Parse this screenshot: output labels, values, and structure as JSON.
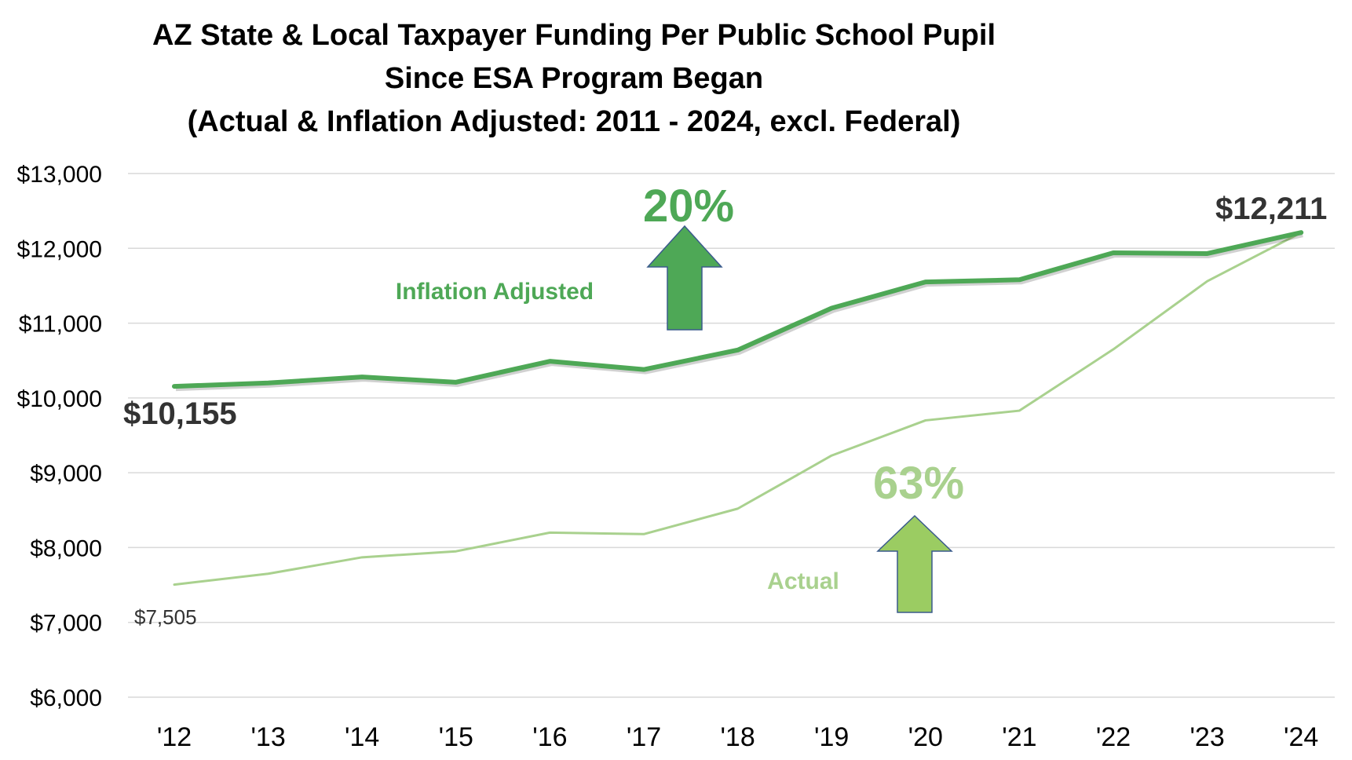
{
  "chart_data": {
    "type": "line",
    "title": [
      "AZ State & Local Taxpayer Funding Per Public School Pupil",
      "Since ESA Program Began",
      "(Actual & Inflation Adjusted: 2011 - 2024, excl. Federal)"
    ],
    "categories": [
      "'12",
      "'13",
      "'14",
      "'15",
      "'16",
      "'17",
      "'18",
      "'19",
      "'20",
      "'21",
      "'22",
      "'23",
      "'24"
    ],
    "series": [
      {
        "name": "Inflation Adjusted",
        "color": "#4ea856",
        "values": [
          10155,
          10200,
          10280,
          10210,
          10490,
          10380,
          10640,
          11200,
          11550,
          11580,
          11940,
          11930,
          12211
        ]
      },
      {
        "name": "Actual",
        "color": "#a9d18e",
        "values": [
          7505,
          7650,
          7870,
          7950,
          8200,
          8180,
          8520,
          9230,
          9700,
          9830,
          10650,
          11560,
          12211
        ]
      }
    ],
    "ylim": [
      6000,
      13000
    ],
    "yticks": [
      6000,
      7000,
      8000,
      9000,
      10000,
      11000,
      12000,
      13000
    ],
    "ytick_labels": [
      "$6,000",
      "$7,000",
      "$8,000",
      "$9,000",
      "$10,000",
      "$11,000",
      "$12,000",
      "$13,000"
    ],
    "grid": true,
    "annotations": {
      "start_adjusted": "$10,155",
      "start_actual": "$7,505",
      "end_value": "$12,211",
      "pct_adjusted": "20%",
      "pct_actual": "63%"
    },
    "colors": {
      "adjusted": "#4ea856",
      "actual": "#a9d18e",
      "arrow_adjusted": "#4ea856",
      "arrow_actual": "#9bcc62",
      "arrow_outline": "#3a5a8c",
      "grid": "#d9d9d9",
      "label_dark": "#333333"
    }
  }
}
